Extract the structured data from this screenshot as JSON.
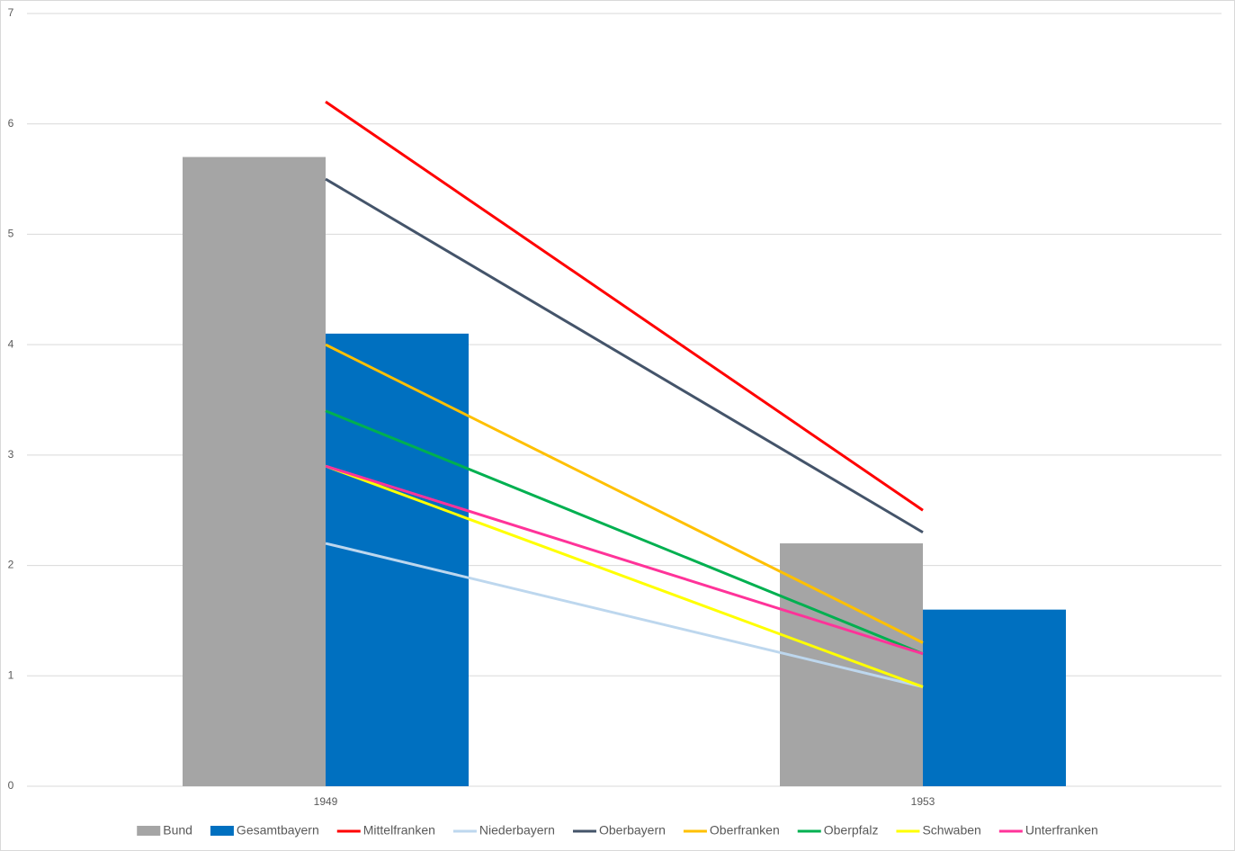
{
  "chart_data": {
    "type": "combo",
    "categories": [
      "1949",
      "1953"
    ],
    "series": [
      {
        "name": "Bund",
        "type": "bar",
        "color": "#a5a5a5",
        "values": [
          5.7,
          2.2
        ]
      },
      {
        "name": "Gesamtbayern",
        "type": "bar",
        "color": "#0070c0",
        "values": [
          4.1,
          1.6
        ]
      },
      {
        "name": "Mittelfranken",
        "type": "line",
        "color": "#ff0000",
        "values": [
          6.2,
          2.5
        ]
      },
      {
        "name": "Niederbayern",
        "type": "line",
        "color": "#bdd7ee",
        "values": [
          2.2,
          0.9
        ]
      },
      {
        "name": "Oberbayern",
        "type": "line",
        "color": "#44546a",
        "values": [
          5.5,
          2.3
        ]
      },
      {
        "name": "Oberfranken",
        "type": "line",
        "color": "#ffc000",
        "values": [
          4.0,
          1.3
        ]
      },
      {
        "name": "Oberpfalz",
        "type": "line",
        "color": "#00b050",
        "values": [
          3.4,
          1.2
        ]
      },
      {
        "name": "Schwaben",
        "type": "line",
        "color": "#ffff00",
        "values": [
          2.9,
          0.9
        ]
      },
      {
        "name": "Unterfranken",
        "type": "line",
        "color": "#ff3399",
        "values": [
          2.9,
          1.2
        ]
      }
    ],
    "ylim": [
      0,
      7
    ],
    "yticks": [
      0,
      1,
      2,
      3,
      4,
      5,
      6,
      7
    ],
    "grid": true,
    "legend": "bottom"
  }
}
